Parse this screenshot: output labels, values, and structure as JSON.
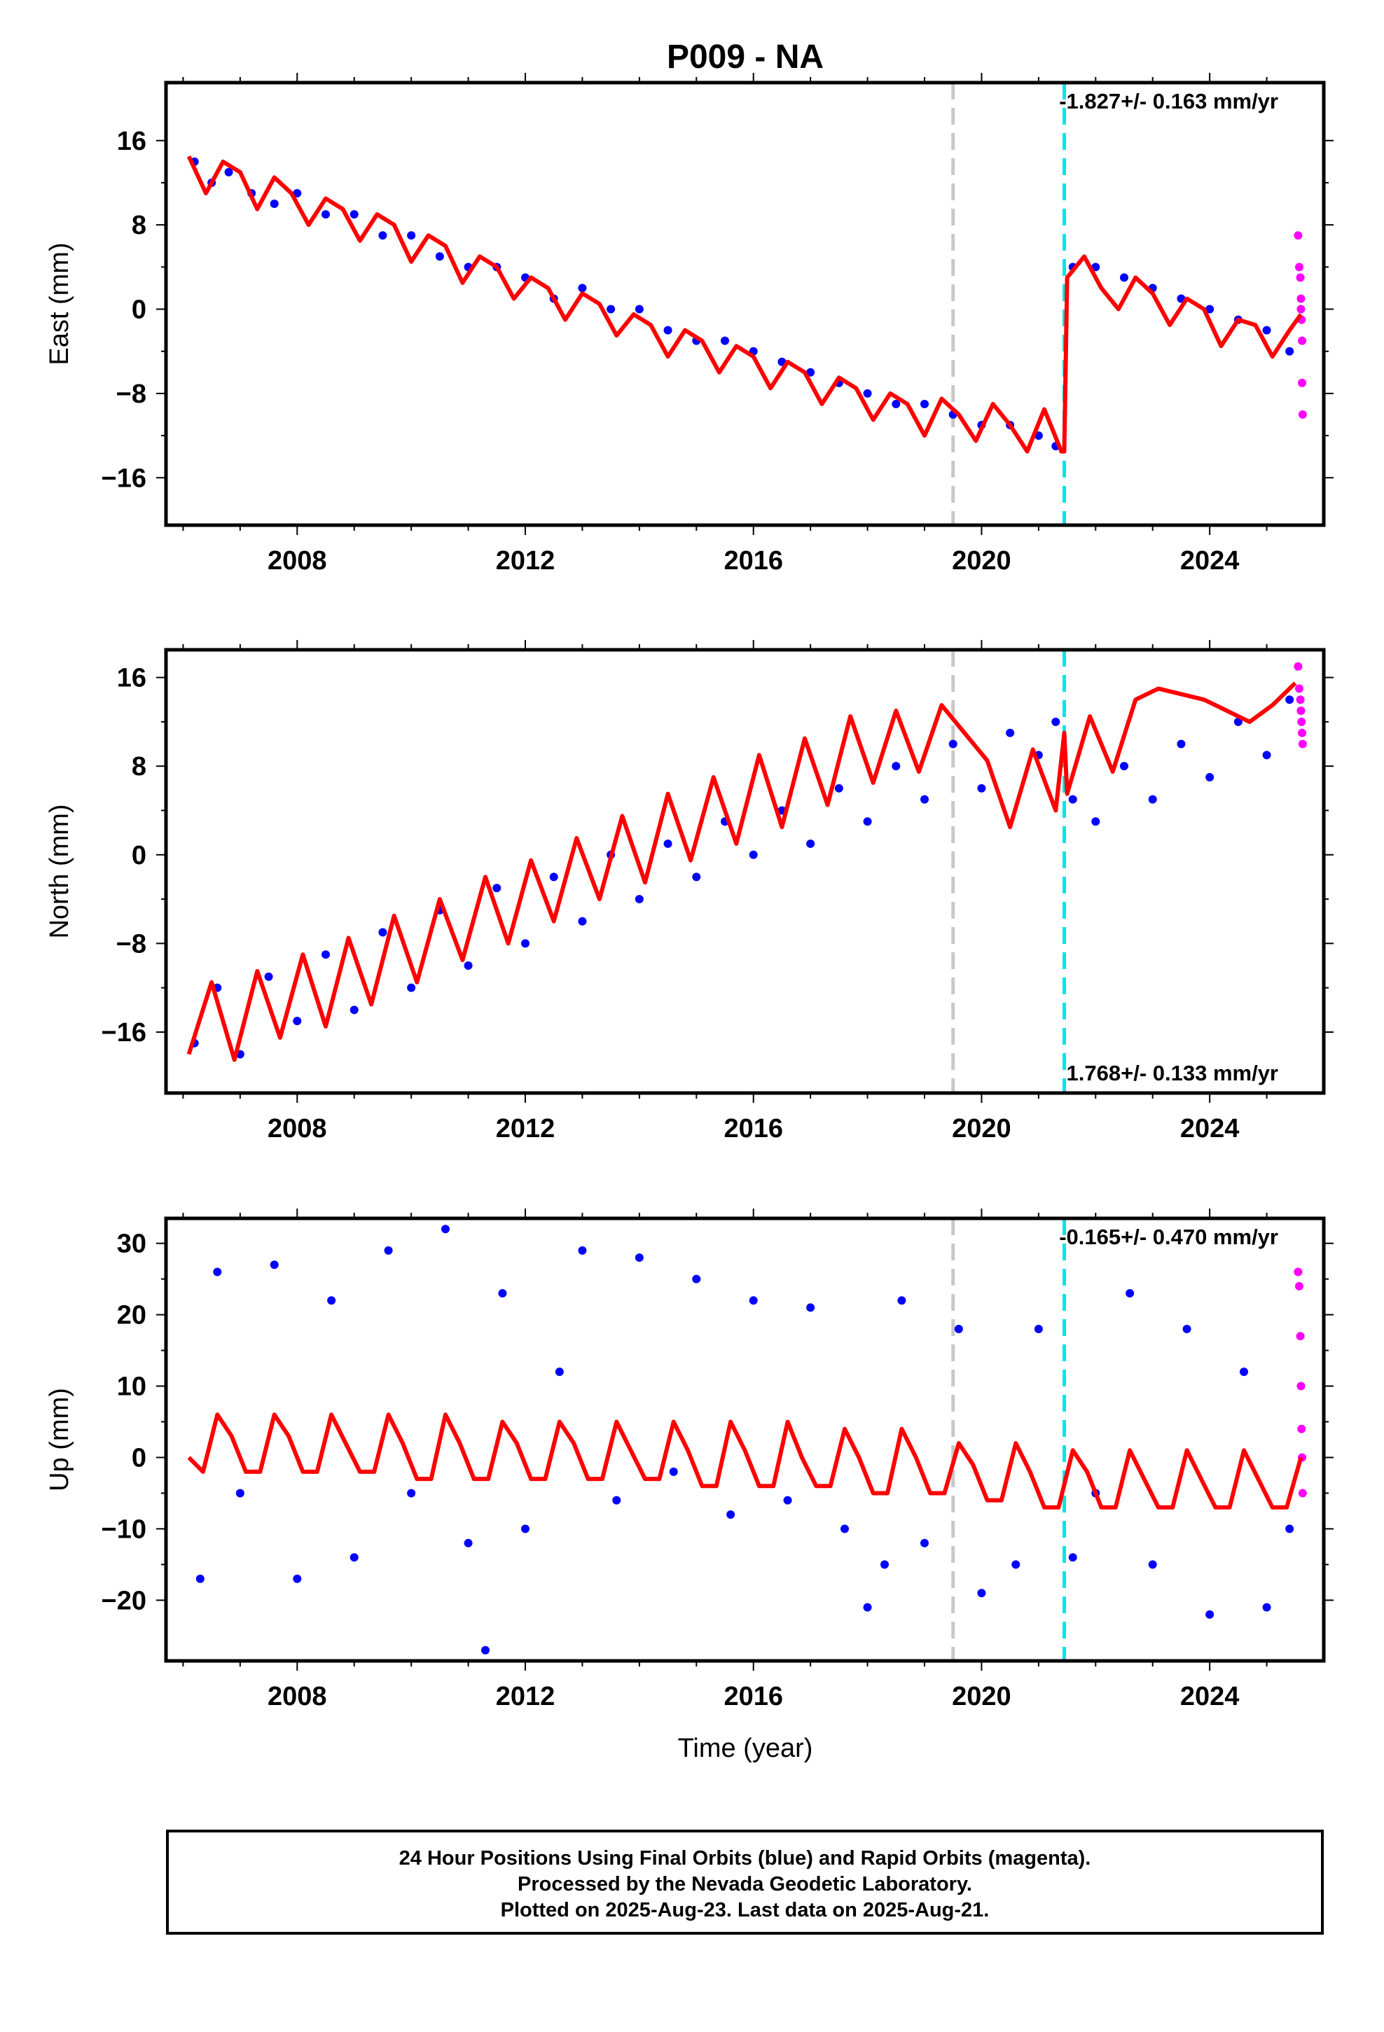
{
  "title": "P009 - NA",
  "colors": {
    "final_orbits": "#0000ff",
    "rapid_orbits": "#ff00ff",
    "model_fit": "#ff0000",
    "marker_gray": "#c8c8c8",
    "marker_cyan": "#00e5e5"
  },
  "x_axis": {
    "label": "Time (year)",
    "range": [
      2005.7,
      2026.0
    ],
    "ticks": [
      2008,
      2012,
      2016,
      2020,
      2024
    ],
    "tick_labels": [
      "2008",
      "2012",
      "2016",
      "2020",
      "2024"
    ]
  },
  "vertical_markers": [
    {
      "name": "gray-dashed",
      "x": 2019.5
    },
    {
      "name": "cyan-dashed",
      "x": 2021.45
    }
  ],
  "chart_data": [
    {
      "type": "scatter",
      "panel": "east",
      "ylabel": "East (mm)",
      "ylim": [
        -20.5,
        21.5
      ],
      "yticks": [
        -16,
        -8,
        0,
        8,
        16
      ],
      "ytick_labels": [
        "−16",
        "−8",
        "0",
        "8",
        "16"
      ],
      "rate_text": "-1.827+/- 0.163 mm/yr",
      "rate_position": "top-right",
      "series": [
        {
          "role": "final_orbits",
          "style": "dots",
          "x": [
            2006.2,
            2006.5,
            2006.8,
            2007.2,
            2007.6,
            2008.0,
            2008.5,
            2009.0,
            2009.5,
            2010.0,
            2010.5,
            2011.0,
            2011.5,
            2012.0,
            2012.5,
            2013.0,
            2013.5,
            2014.0,
            2014.5,
            2015.0,
            2015.5,
            2016.0,
            2016.5,
            2017.0,
            2017.5,
            2018.0,
            2018.5,
            2019.0,
            2019.5,
            2020.0,
            2020.5,
            2021.0,
            2021.3,
            2021.6,
            2022.0,
            2022.5,
            2023.0,
            2023.5,
            2024.0,
            2024.5,
            2025.0,
            2025.4
          ],
          "y": [
            14,
            12,
            13,
            11,
            10,
            11,
            9,
            9,
            7,
            7,
            5,
            4,
            4,
            3,
            1,
            2,
            0,
            0,
            -2,
            -3,
            -3,
            -4,
            -5,
            -6,
            -7,
            -8,
            -9,
            -9,
            -10,
            -11,
            -11,
            -12,
            -13,
            4,
            4,
            3,
            2,
            1,
            0,
            -1,
            -2,
            -4
          ]
        },
        {
          "role": "rapid_orbits",
          "style": "dots",
          "x": [
            2025.55,
            2025.57,
            2025.59,
            2025.6,
            2025.6,
            2025.61,
            2025.62,
            2025.62,
            2025.63
          ],
          "y": [
            7,
            4,
            3,
            1,
            0,
            -1,
            -3,
            -7,
            -10
          ]
        },
        {
          "role": "model_fit",
          "style": "line",
          "x": [
            2006.1,
            2006.4,
            2006.7,
            2007.0,
            2007.3,
            2007.6,
            2007.9,
            2008.2,
            2008.5,
            2008.8,
            2009.1,
            2009.4,
            2009.7,
            2010.0,
            2010.3,
            2010.6,
            2010.9,
            2011.2,
            2011.5,
            2011.8,
            2012.1,
            2012.4,
            2012.7,
            2013.0,
            2013.3,
            2013.6,
            2013.9,
            2014.2,
            2014.5,
            2014.8,
            2015.1,
            2015.4,
            2015.7,
            2016.0,
            2016.3,
            2016.6,
            2016.9,
            2017.2,
            2017.5,
            2017.8,
            2018.1,
            2018.4,
            2018.7,
            2019.0,
            2019.3,
            2019.6,
            2019.9,
            2020.2,
            2020.5,
            2020.8,
            2021.1,
            2021.4,
            2021.45,
            2021.5,
            2021.8,
            2022.1,
            2022.4,
            2022.7,
            2023.0,
            2023.3,
            2023.6,
            2023.9,
            2024.2,
            2024.5,
            2024.8,
            2025.1,
            2025.4,
            2025.6
          ],
          "y": [
            14.5,
            11.0,
            14.0,
            13.0,
            9.5,
            12.5,
            11.0,
            8.0,
            10.5,
            9.5,
            6.5,
            9.0,
            8.0,
            4.5,
            7.0,
            6.0,
            2.5,
            5.0,
            4.0,
            1.0,
            3.0,
            2.0,
            -1.0,
            1.5,
            0.5,
            -2.5,
            -0.5,
            -1.5,
            -4.5,
            -2.0,
            -3.0,
            -6.0,
            -3.5,
            -4.5,
            -7.5,
            -5.0,
            -6.0,
            -9.0,
            -6.5,
            -7.5,
            -10.5,
            -8.0,
            -9.0,
            -12.0,
            -8.5,
            -10.0,
            -12.5,
            -9.0,
            -11.0,
            -13.5,
            -9.5,
            -13.5,
            -13.5,
            3.0,
            5.0,
            2.0,
            0.0,
            3.0,
            1.5,
            -1.5,
            1.0,
            0.0,
            -3.5,
            -1.0,
            -1.5,
            -4.5,
            -2.0,
            -0.5
          ]
        }
      ]
    },
    {
      "type": "scatter",
      "panel": "north",
      "ylabel": "North (mm)",
      "ylim": [
        -21.5,
        18.5
      ],
      "yticks": [
        -16,
        -8,
        0,
        8,
        16
      ],
      "ytick_labels": [
        "−16",
        "−8",
        "0",
        "8",
        "16"
      ],
      "rate_text": "1.768+/- 0.133 mm/yr",
      "rate_position": "bottom-right",
      "series": [
        {
          "role": "final_orbits",
          "style": "dots",
          "x": [
            2006.2,
            2006.6,
            2007.0,
            2007.5,
            2008.0,
            2008.5,
            2009.0,
            2009.5,
            2010.0,
            2010.5,
            2011.0,
            2011.5,
            2012.0,
            2012.5,
            2013.0,
            2013.5,
            2014.0,
            2014.5,
            2015.0,
            2015.5,
            2016.0,
            2016.5,
            2017.0,
            2017.5,
            2018.0,
            2018.5,
            2019.0,
            2019.5,
            2020.0,
            2020.5,
            2021.0,
            2021.3,
            2021.6,
            2022.0,
            2022.5,
            2023.0,
            2023.5,
            2024.0,
            2024.5,
            2025.0,
            2025.4
          ],
          "y": [
            -17,
            -12,
            -18,
            -11,
            -15,
            -9,
            -14,
            -7,
            -12,
            -5,
            -10,
            -3,
            -8,
            -2,
            -6,
            0,
            -4,
            1,
            -2,
            3,
            0,
            4,
            1,
            6,
            3,
            8,
            5,
            10,
            6,
            11,
            9,
            12,
            5,
            3,
            8,
            5,
            10,
            7,
            12,
            9,
            14
          ]
        },
        {
          "role": "rapid_orbits",
          "style": "dots",
          "x": [
            2025.55,
            2025.57,
            2025.59,
            2025.6,
            2025.61,
            2025.62,
            2025.63
          ],
          "y": [
            17,
            15,
            14,
            13,
            12,
            11,
            10
          ]
        },
        {
          "role": "model_fit",
          "style": "line",
          "x": [
            2006.1,
            2006.5,
            2006.9,
            2007.3,
            2007.7,
            2008.1,
            2008.5,
            2008.9,
            2009.3,
            2009.7,
            2010.1,
            2010.5,
            2010.9,
            2011.3,
            2011.7,
            2012.1,
            2012.5,
            2012.9,
            2013.3,
            2013.7,
            2014.1,
            2014.5,
            2014.9,
            2015.3,
            2015.7,
            2016.1,
            2016.5,
            2016.9,
            2017.3,
            2017.7,
            2018.1,
            2018.5,
            2018.9,
            2019.3,
            2019.7,
            2020.1,
            2020.5,
            2020.9,
            2021.3,
            2021.45,
            2021.5,
            2021.9,
            2022.3,
            2022.7,
            2023.1,
            2023.5,
            2023.9,
            2024.3,
            2024.7,
            2025.1,
            2025.5
          ],
          "y": [
            -18.0,
            -11.5,
            -18.5,
            -10.5,
            -16.5,
            -9.0,
            -15.5,
            -7.5,
            -13.5,
            -5.5,
            -11.5,
            -4.0,
            -9.5,
            -2.0,
            -8.0,
            -0.5,
            -6.0,
            1.5,
            -4.0,
            3.5,
            -2.5,
            5.5,
            -0.5,
            7.0,
            1.0,
            9.0,
            2.5,
            10.5,
            4.5,
            12.5,
            6.5,
            13.0,
            7.5,
            13.5,
            11.0,
            8.5,
            2.5,
            9.5,
            4.0,
            11.0,
            5.5,
            12.5,
            7.5,
            14.0,
            15.0,
            14.5,
            14.0,
            13.0,
            12.0,
            13.5,
            15.5
          ]
        }
      ]
    },
    {
      "type": "scatter",
      "panel": "up",
      "ylabel": "Up (mm)",
      "ylim": [
        -28.5,
        33.5
      ],
      "yticks": [
        -20,
        -10,
        0,
        10,
        20,
        30
      ],
      "ytick_labels": [
        "−20",
        "−10",
        "0",
        "10",
        "20",
        "30"
      ],
      "rate_text": "-0.165+/- 0.470 mm/yr",
      "rate_position": "top-right",
      "series": [
        {
          "role": "final_orbits",
          "style": "dots",
          "x": [
            2006.3,
            2006.6,
            2007.0,
            2007.6,
            2008.0,
            2008.6,
            2009.0,
            2009.6,
            2010.0,
            2010.6,
            2011.0,
            2011.3,
            2011.6,
            2012.0,
            2012.6,
            2013.0,
            2013.6,
            2014.0,
            2014.6,
            2015.0,
            2015.6,
            2016.0,
            2016.6,
            2017.0,
            2017.6,
            2018.0,
            2018.3,
            2018.6,
            2019.0,
            2019.6,
            2020.0,
            2020.6,
            2021.0,
            2021.6,
            2022.0,
            2022.6,
            2023.0,
            2023.6,
            2024.0,
            2024.6,
            2025.0,
            2025.4
          ],
          "y": [
            -17,
            26,
            -5,
            27,
            -17,
            22,
            -14,
            29,
            -5,
            32,
            -12,
            -27,
            23,
            -10,
            12,
            29,
            -6,
            28,
            -2,
            25,
            -8,
            22,
            -6,
            21,
            -10,
            -21,
            -15,
            22,
            -12,
            18,
            -19,
            -15,
            18,
            -14,
            -5,
            23,
            -15,
            18,
            -22,
            12,
            -21,
            -10
          ]
        },
        {
          "role": "rapid_orbits",
          "style": "dots",
          "x": [
            2025.55,
            2025.57,
            2025.59,
            2025.6,
            2025.61,
            2025.62,
            2025.63
          ],
          "y": [
            26,
            24,
            17,
            10,
            4,
            0,
            -5
          ]
        },
        {
          "role": "model_fit",
          "style": "line",
          "x": [
            2006.1,
            2006.35,
            2006.6,
            2006.85,
            2007.1,
            2007.35,
            2007.6,
            2007.85,
            2008.1,
            2008.35,
            2008.6,
            2008.85,
            2009.1,
            2009.35,
            2009.6,
            2009.85,
            2010.1,
            2010.35,
            2010.6,
            2010.85,
            2011.1,
            2011.35,
            2011.6,
            2011.85,
            2012.1,
            2012.35,
            2012.6,
            2012.85,
            2013.1,
            2013.35,
            2013.6,
            2013.85,
            2014.1,
            2014.35,
            2014.6,
            2014.85,
            2015.1,
            2015.35,
            2015.6,
            2015.85,
            2016.1,
            2016.35,
            2016.6,
            2016.85,
            2017.1,
            2017.35,
            2017.6,
            2017.85,
            2018.1,
            2018.35,
            2018.6,
            2018.85,
            2019.1,
            2019.35,
            2019.6,
            2019.85,
            2020.1,
            2020.35,
            2020.6,
            2020.85,
            2021.1,
            2021.35,
            2021.6,
            2021.85,
            2022.1,
            2022.35,
            2022.6,
            2022.85,
            2023.1,
            2023.35,
            2023.6,
            2023.85,
            2024.1,
            2024.35,
            2024.6,
            2024.85,
            2025.1,
            2025.35,
            2025.6
          ],
          "y": [
            0,
            -2,
            6,
            3,
            -2,
            -2,
            6,
            3,
            -2,
            -2,
            6,
            2,
            -2,
            -2,
            6,
            2,
            -3,
            -3,
            6,
            2,
            -3,
            -3,
            5,
            2,
            -3,
            -3,
            5,
            2,
            -3,
            -3,
            5,
            1,
            -3,
            -3,
            5,
            1,
            -4,
            -4,
            5,
            1,
            -4,
            -4,
            5,
            0,
            -4,
            -4,
            4,
            0,
            -5,
            -5,
            4,
            0,
            -5,
            -5,
            2,
            -1,
            -6,
            -6,
            2,
            -2,
            -7,
            -7,
            1,
            -2,
            -7,
            -7,
            1,
            -3,
            -7,
            -7,
            1,
            -3,
            -7,
            -7,
            1,
            -3,
            -7,
            -7,
            0
          ]
        }
      ]
    }
  ],
  "footer": {
    "line1": "24 Hour Positions Using Final Orbits (blue) and Rapid Orbits (magenta).",
    "line2": "Processed by the Nevada Geodetic Laboratory.",
    "line3": "Plotted on 2025-Aug-23. Last data on 2025-Aug-21."
  }
}
